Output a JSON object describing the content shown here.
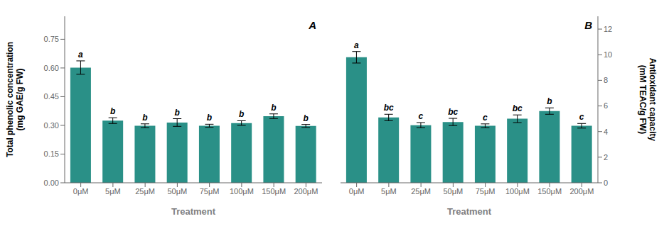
{
  "chart_data": [
    {
      "type": "bar",
      "title": "A",
      "xlabel": "Treatment",
      "ylabel": "Total phenolic concentration\n(mg GAE/g FW)",
      "categories": [
        "0μM",
        "5μM",
        "25μM",
        "50μM",
        "75μM",
        "100μM",
        "150μM",
        "200μM"
      ],
      "values": [
        0.602,
        0.325,
        0.298,
        0.315,
        0.298,
        0.312,
        0.348,
        0.297
      ],
      "errors": [
        0.035,
        0.015,
        0.01,
        0.02,
        0.008,
        0.012,
        0.012,
        0.008
      ],
      "annotations": [
        "a",
        "b",
        "b",
        "b",
        "b",
        "b",
        "b",
        "b"
      ],
      "color": "#2a9087",
      "ylim": [
        0.0,
        0.87
      ],
      "yticks": [
        {
          "value": 0,
          "label": "0.00"
        },
        0.15,
        {
          "value": 0.3,
          "label": "0.30"
        },
        0.45,
        {
          "value": 0.6,
          "label": "0.60"
        },
        0.75
      ],
      "grid": false
    },
    {
      "type": "bar",
      "title": "B",
      "xlabel": "Treatment",
      "ylabel": "Antioxidant capacity\n(mM TEAC/g FW)",
      "categories": [
        "0μM",
        "5μM",
        "25μM",
        "50μM",
        "75μM",
        "100μM",
        "150μM",
        "200μM"
      ],
      "values": [
        9.8,
        5.1,
        4.5,
        4.75,
        4.45,
        5.0,
        5.6,
        4.45
      ],
      "errors": [
        0.45,
        0.25,
        0.2,
        0.28,
        0.15,
        0.3,
        0.25,
        0.18
      ],
      "annotations": [
        "a",
        "bc",
        "c",
        "bc",
        "c",
        "bc",
        "b",
        "c"
      ],
      "color": "#2a9087",
      "ylim": [
        0,
        13.0
      ],
      "yticks": [
        0,
        2,
        4,
        6,
        8,
        10,
        12
      ],
      "grid": false
    }
  ]
}
